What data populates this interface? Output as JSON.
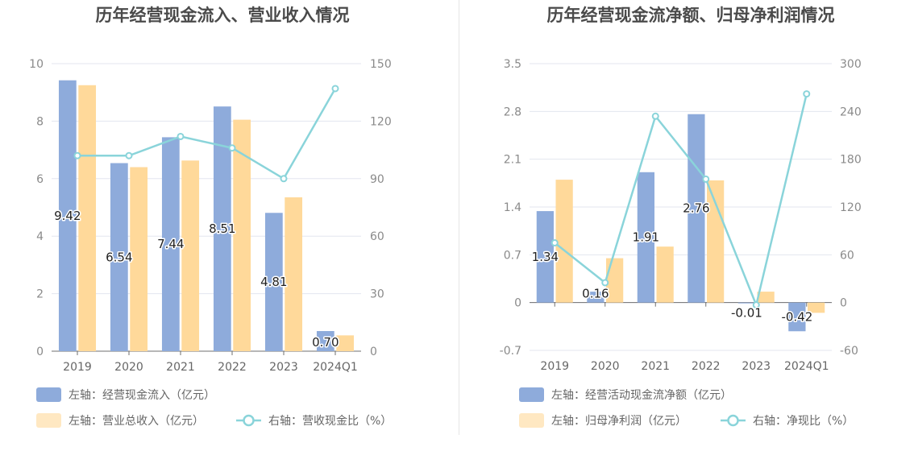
{
  "chart_data": [
    {
      "type": "bar",
      "title": "历年经营现金流入、营业收入情况",
      "categories": [
        "2019",
        "2020",
        "2021",
        "2022",
        "2023",
        "2024Q1"
      ],
      "y_left": {
        "min": 0,
        "max": 10,
        "ticks": [
          "0",
          "2",
          "4",
          "6",
          "8",
          "10"
        ]
      },
      "y_right": {
        "min": 0,
        "max": 150,
        "ticks": [
          "0",
          "30",
          "60",
          "90",
          "120",
          "150"
        ]
      },
      "series": [
        {
          "name": "左轴：经营现金流入（亿元）",
          "kind": "bar",
          "axis": "left",
          "color": "#8eabdb",
          "values": [
            9.42,
            6.54,
            7.44,
            8.51,
            4.81,
            0.7
          ],
          "labels": [
            "9.42",
            "6.54",
            "7.44",
            "8.51",
            "4.81",
            "0.70"
          ]
        },
        {
          "name": "左轴：营业总收入（亿元）",
          "kind": "bar",
          "axis": "left",
          "color": "#ffd99a",
          "values": [
            9.25,
            6.4,
            6.63,
            8.05,
            5.35,
            0.55
          ]
        },
        {
          "name": "右轴：营收现金比（%）",
          "kind": "line",
          "axis": "right",
          "color": "#8ad4da",
          "values": [
            102,
            102,
            112,
            106,
            90,
            137
          ]
        }
      ],
      "legend": {
        "position": "bottom-left"
      }
    },
    {
      "type": "bar",
      "title": "历年经营现金流净额、归母净利润情况",
      "categories": [
        "2019",
        "2020",
        "2021",
        "2022",
        "2023",
        "2024Q1"
      ],
      "y_left": {
        "min": -0.7,
        "max": 3.5,
        "ticks": [
          "-0.7",
          "0",
          "0.7",
          "1.4",
          "2.1",
          "2.8",
          "3.5"
        ]
      },
      "y_right": {
        "min": -60,
        "max": 300,
        "ticks": [
          "-60",
          "0",
          "60",
          "120",
          "180",
          "240",
          "300"
        ]
      },
      "series": [
        {
          "name": "左轴：经营活动现金流净额（亿元）",
          "kind": "bar",
          "axis": "left",
          "color": "#8eabdb",
          "values": [
            1.34,
            0.16,
            1.91,
            2.76,
            -0.01,
            -0.42
          ],
          "labels": [
            "1.34",
            "0.16",
            "1.91",
            "2.76",
            "-0.01",
            "-0.42"
          ]
        },
        {
          "name": "左轴：归母净利润（亿元）",
          "kind": "bar",
          "axis": "left",
          "color": "#ffd99a",
          "values": [
            1.8,
            0.65,
            0.82,
            1.79,
            0.16,
            -0.15
          ]
        },
        {
          "name": "右轴：净现比（%）",
          "kind": "line",
          "axis": "right",
          "color": "#8ad4da",
          "values": [
            75,
            25,
            234,
            155,
            -3,
            262
          ]
        }
      ],
      "legend": {
        "position": "bottom-left"
      }
    }
  ]
}
